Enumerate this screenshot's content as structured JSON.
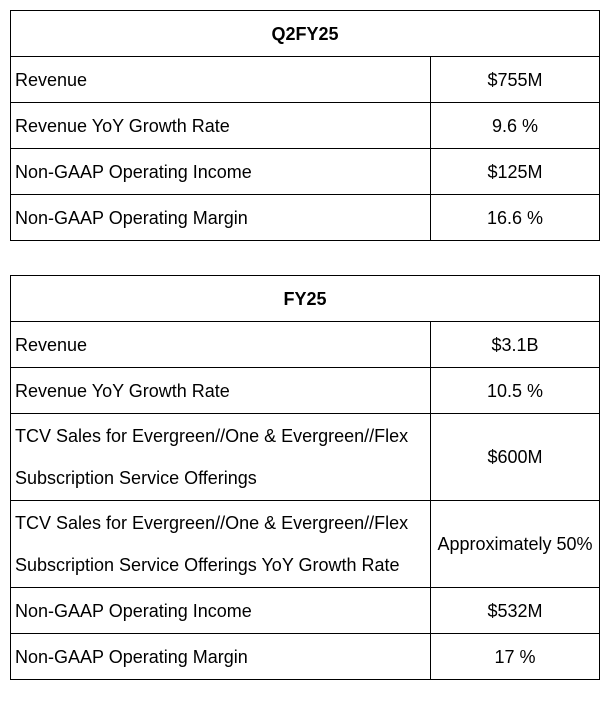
{
  "q2fy25": {
    "title": "Q2FY25",
    "rows": [
      {
        "label": "Revenue",
        "value": "$755M"
      },
      {
        "label": "Revenue YoY Growth Rate",
        "value": "9.6 %"
      },
      {
        "label": "Non-GAAP Operating Income",
        "value": "$125M"
      },
      {
        "label": "Non-GAAP Operating Margin",
        "value": "16.6 %"
      }
    ]
  },
  "fy25": {
    "title": "FY25",
    "rows": [
      {
        "label": "Revenue",
        "value": "$3.1B"
      },
      {
        "label": "Revenue YoY Growth Rate",
        "value": "10.5 %"
      },
      {
        "label_line1": "TCV Sales for Evergreen//One & Evergreen//Flex",
        "label_line2": "Subscription Service Offerings",
        "value": "$600M"
      },
      {
        "label_line1": "TCV Sales for Evergreen//One & Evergreen//Flex",
        "label_line2": "Subscription Service Offerings YoY Growth Rate",
        "value": "Approximately 50%"
      },
      {
        "label": "Non-GAAP Operating Income",
        "value": "$532M"
      },
      {
        "label": "Non-GAAP Operating Margin",
        "value": "17 %"
      }
    ]
  }
}
